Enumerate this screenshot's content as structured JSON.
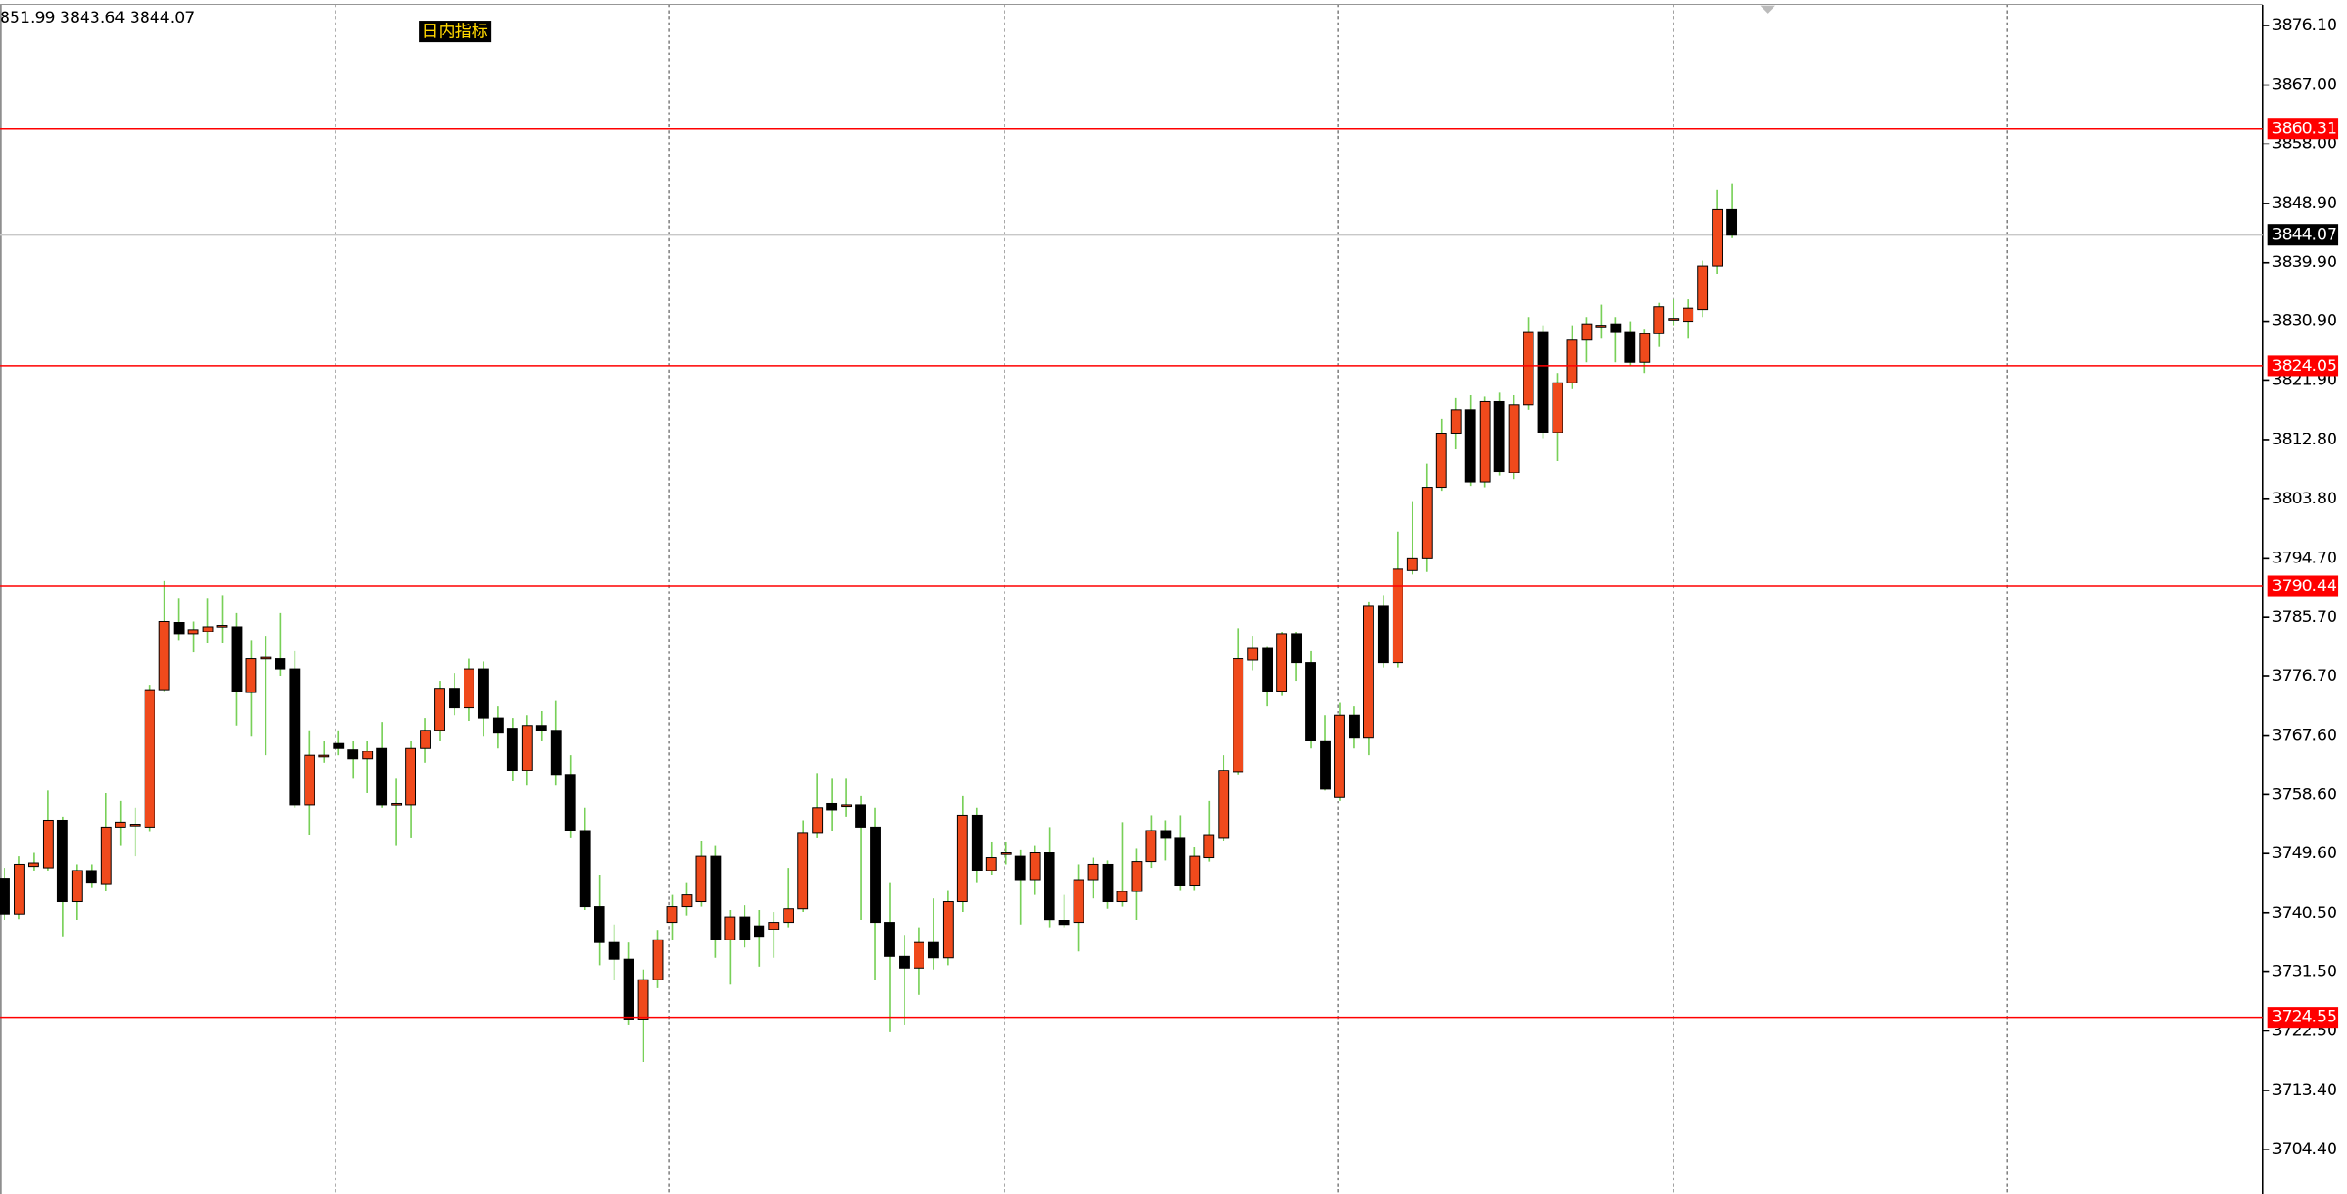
{
  "chart_data": {
    "type": "candlestick",
    "info_text": "851.99 3843.64 3844.07",
    "indicator_label": "日内指标",
    "open": [
      3745.8,
      3740.3,
      3747.6,
      3747.4,
      3754.7,
      3742.2,
      3747.0,
      3744.9,
      3753.6,
      3754.0,
      3753.6,
      3774.6,
      3784.9,
      3783.1,
      3783.5,
      3784.4,
      3784.2,
      3774.2,
      3779.6,
      3779.4,
      3777.8,
      3757.0,
      3764.6,
      3766.4,
      3765.5,
      3764.1,
      3765.7,
      3757.2,
      3757.0,
      3765.7,
      3768.4,
      3774.8,
      3771.9,
      3777.8,
      3770.3,
      3768.7,
      3762.3,
      3769.1,
      3768.4,
      3761.6,
      3753.1,
      3741.5,
      3736.0,
      3733.5,
      3724.3,
      3730.3,
      3739.0,
      3741.5,
      3742.2,
      3749.2,
      3736.4,
      3739.9,
      3738.5,
      3738.0,
      3739.0,
      3741.2,
      3752.7,
      3757.2,
      3757.0,
      3757.0,
      3753.6,
      3739.0,
      3733.9,
      3732.1,
      3736.0,
      3733.7,
      3742.2,
      3755.4,
      3747.0,
      3749.7,
      3749.2,
      3745.6,
      3749.7,
      3739.4,
      3739.0,
      3745.6,
      3747.9,
      3742.2,
      3743.8,
      3748.3,
      3753.1,
      3752.0,
      3744.7,
      3749.0,
      3752.0,
      3762.0,
      3779.2,
      3781.0,
      3774.4,
      3783.1,
      3778.7,
      3766.8,
      3758.2,
      3770.7,
      3767.3,
      3787.4,
      3778.7,
      3792.9,
      3794.7,
      3805.5,
      3813.7,
      3817.4,
      3806.4,
      3818.7,
      3807.8,
      3818.1,
      3829.3,
      3813.9,
      3821.5,
      3828.1,
      3830.2,
      3830.4,
      3829.3,
      3824.7,
      3829.0,
      3831.3,
      3830.9,
      3832.7,
      3839.3,
      3848.0
    ],
    "high": [
      3747.4,
      3749.2,
      3749.7,
      3759.3,
      3755.2,
      3747.9,
      3747.9,
      3758.8,
      3757.7,
      3756.6,
      3775.3,
      3791.3,
      3788.6,
      3785.1,
      3788.6,
      3789.0,
      3786.3,
      3782.2,
      3782.8,
      3786.3,
      3780.6,
      3768.4,
      3766.8,
      3768.4,
      3766.8,
      3766.8,
      3769.6,
      3761.1,
      3766.8,
      3770.3,
      3776.0,
      3777.1,
      3779.4,
      3779.0,
      3772.1,
      3770.3,
      3770.7,
      3771.4,
      3773.0,
      3764.6,
      3756.6,
      3746.3,
      3738.7,
      3736.0,
      3731.9,
      3737.8,
      3743.3,
      3745.1,
      3751.5,
      3750.8,
      3741.0,
      3741.7,
      3741.0,
      3740.6,
      3747.4,
      3754.7,
      3761.8,
      3761.1,
      3761.1,
      3758.4,
      3756.6,
      3745.1,
      3737.1,
      3738.3,
      3742.8,
      3744.0,
      3758.4,
      3756.6,
      3751.3,
      3751.3,
      3750.2,
      3750.8,
      3753.6,
      3743.3,
      3747.9,
      3749.0,
      3748.6,
      3754.3,
      3750.4,
      3755.4,
      3754.7,
      3755.4,
      3750.6,
      3757.7,
      3764.6,
      3784.0,
      3782.8,
      3781.2,
      3783.5,
      3783.5,
      3780.6,
      3770.7,
      3772.6,
      3772.1,
      3788.1,
      3789.0,
      3798.8,
      3803.4,
      3809.1,
      3816.0,
      3819.2,
      3819.6,
      3819.4,
      3820.1,
      3819.6,
      3831.5,
      3830.2,
      3822.9,
      3830.2,
      3831.5,
      3833.4,
      3831.5,
      3830.9,
      3829.7,
      3833.8,
      3834.3,
      3834.3,
      3840.2,
      3851.0,
      3851.99
    ],
    "low": [
      3739.4,
      3739.6,
      3747.0,
      3747.0,
      3736.9,
      3739.4,
      3744.4,
      3743.8,
      3750.8,
      3749.2,
      3752.9,
      3774.4,
      3782.2,
      3780.3,
      3781.7,
      3781.7,
      3769.1,
      3767.5,
      3764.6,
      3776.7,
      3756.6,
      3752.4,
      3763.4,
      3764.6,
      3761.1,
      3758.8,
      3756.6,
      3750.8,
      3752.0,
      3763.4,
      3766.8,
      3770.7,
      3769.8,
      3767.5,
      3765.7,
      3760.7,
      3760.0,
      3766.8,
      3760.0,
      3752.0,
      3741.0,
      3732.5,
      3730.3,
      3723.4,
      3717.7,
      3729.1,
      3736.4,
      3740.1,
      3741.5,
      3733.7,
      3729.6,
      3735.3,
      3732.3,
      3733.7,
      3738.3,
      3740.6,
      3752.0,
      3753.1,
      3755.2,
      3739.4,
      3730.3,
      3722.3,
      3723.4,
      3728.0,
      3731.9,
      3732.5,
      3740.6,
      3745.1,
      3746.3,
      3747.9,
      3738.7,
      3743.3,
      3738.3,
      3738.3,
      3734.6,
      3742.8,
      3741.2,
      3741.5,
      3739.4,
      3747.4,
      3748.6,
      3744.0,
      3744.0,
      3748.3,
      3751.5,
      3761.6,
      3777.6,
      3772.1,
      3773.7,
      3776.0,
      3765.7,
      3759.3,
      3757.7,
      3765.7,
      3764.6,
      3778.0,
      3778.0,
      3792.2,
      3792.7,
      3805.0,
      3811.4,
      3805.7,
      3805.5,
      3807.3,
      3806.8,
      3817.4,
      3813.0,
      3809.6,
      3820.6,
      3824.7,
      3828.3,
      3824.7,
      3824.0,
      3822.9,
      3827.0,
      3830.2,
      3828.3,
      3831.5,
      3838.2,
      3843.64
    ],
    "close": [
      3740.3,
      3747.9,
      3748.1,
      3754.7,
      3742.2,
      3747.0,
      3745.1,
      3753.6,
      3754.3,
      3754.0,
      3774.6,
      3785.1,
      3783.1,
      3783.8,
      3784.2,
      3784.4,
      3774.4,
      3779.4,
      3779.6,
      3777.8,
      3757.0,
      3764.6,
      3764.6,
      3765.7,
      3764.1,
      3765.2,
      3757.0,
      3757.2,
      3765.7,
      3768.4,
      3774.8,
      3771.9,
      3777.8,
      3770.3,
      3768.0,
      3762.3,
      3769.1,
      3768.4,
      3761.6,
      3753.1,
      3741.5,
      3736.0,
      3733.5,
      3724.3,
      3730.3,
      3736.4,
      3741.5,
      3743.3,
      3749.2,
      3736.4,
      3739.9,
      3736.4,
      3736.9,
      3739.0,
      3741.2,
      3752.7,
      3756.6,
      3756.3,
      3757.0,
      3753.6,
      3739.0,
      3733.9,
      3732.1,
      3736.0,
      3733.7,
      3742.2,
      3755.4,
      3747.0,
      3749.0,
      3749.7,
      3745.6,
      3749.7,
      3739.4,
      3738.7,
      3745.6,
      3747.9,
      3742.2,
      3743.8,
      3748.3,
      3753.1,
      3752.0,
      3744.7,
      3749.2,
      3752.4,
      3762.3,
      3779.4,
      3781.0,
      3774.4,
      3783.1,
      3778.7,
      3766.8,
      3759.5,
      3770.7,
      3767.3,
      3787.4,
      3778.7,
      3793.1,
      3794.7,
      3805.5,
      3813.7,
      3817.4,
      3806.4,
      3818.7,
      3808.0,
      3818.1,
      3829.3,
      3813.9,
      3821.5,
      3828.1,
      3830.4,
      3830.2,
      3829.3,
      3824.7,
      3829.0,
      3833.1,
      3831.3,
      3832.9,
      3839.3,
      3848.0,
      3844.07
    ],
    "up_color": "#f04a1c",
    "down_color": "#000000",
    "wick_color": "#78d058",
    "ylim": [
      3697.8,
      3879.3
    ],
    "yticks": [
      {
        "value": 3876.1,
        "label": "3876.10"
      },
      {
        "value": 3867,
        "label": "3867.00"
      },
      {
        "value": 3858,
        "label": "3858.00"
      },
      {
        "value": 3848.9,
        "label": "3848.90"
      },
      {
        "value": 3839.9,
        "label": "3839.90"
      },
      {
        "value": 3830.9,
        "label": "3830.90"
      },
      {
        "value": 3821.9,
        "label": "3821.90"
      },
      {
        "value": 3812.8,
        "label": "3812.80"
      },
      {
        "value": 3803.8,
        "label": "3803.80"
      },
      {
        "value": 3794.7,
        "label": "3794.70"
      },
      {
        "value": 3785.7,
        "label": "3785.70"
      },
      {
        "value": 3776.7,
        "label": "3776.70"
      },
      {
        "value": 3767.6,
        "label": "3767.60"
      },
      {
        "value": 3758.6,
        "label": "3758.60"
      },
      {
        "value": 3749.6,
        "label": "3749.60"
      },
      {
        "value": 3740.5,
        "label": "3740.50"
      },
      {
        "value": 3731.5,
        "label": "3731.50"
      },
      {
        "value": 3722.5,
        "label": "3722.50"
      },
      {
        "value": 3713.4,
        "label": "3713.40"
      },
      {
        "value": 3704.4,
        "label": "3704.40"
      }
    ],
    "levels": [
      {
        "value": 3860.31
      },
      {
        "value": 3824.05
      },
      {
        "value": 3790.44
      },
      {
        "value": 3724.55
      }
    ],
    "level_color": "#ff0000",
    "current_price": 3844.07,
    "current_color": "#000000"
  }
}
